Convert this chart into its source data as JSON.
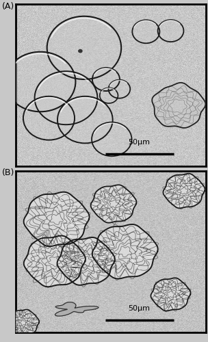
{
  "fig_width": 3.04,
  "fig_height": 5.0,
  "dpi": 100,
  "label_A": "(A)",
  "label_B": "(B)",
  "scalebar_text": "50μm",
  "bg_gray": 0.78,
  "panel_border_lw": 2.0,
  "noise_seed": 42,
  "noise_amount": 0.04
}
